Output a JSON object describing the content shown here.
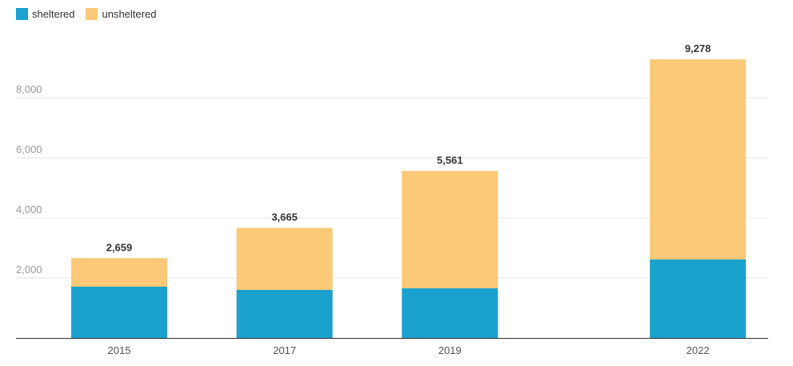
{
  "chart_data": {
    "type": "bar",
    "stacked": true,
    "title": "",
    "xlabel": "",
    "ylabel": "",
    "categories": [
      "2015",
      "2017",
      "2019",
      "2022"
    ],
    "x": [
      2015,
      2017,
      2019,
      2022
    ],
    "series": [
      {
        "name": "sheltered",
        "color": "#1ba1cd",
        "values": [
          1707,
          1600,
          1653,
          2613
        ]
      },
      {
        "name": "unsheltered",
        "color": "#fcc978",
        "values": [
          952,
          2065,
          3908,
          6665
        ]
      }
    ],
    "totals": [
      2659,
      3665,
      5561,
      9278
    ],
    "total_labels": [
      "2,659",
      "3,665",
      "5,561",
      "9,278"
    ],
    "ylim": [
      0,
      9278
    ],
    "yticks": [
      2000,
      4000,
      6000,
      8000
    ],
    "ytick_labels": [
      "2,000",
      "4,000",
      "6,000",
      "8,000"
    ],
    "grid": true,
    "legend_position": "top-left"
  }
}
